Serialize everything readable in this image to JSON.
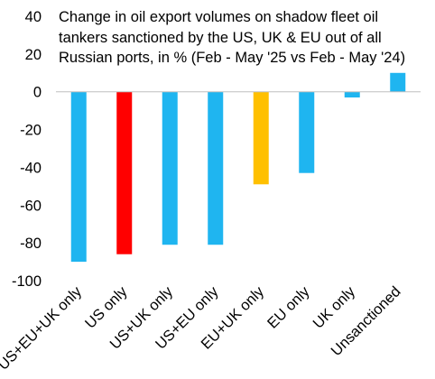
{
  "chart_data": {
    "type": "bar",
    "title_lines": [
      "Change in oil export volumes on shadow fleet oil",
      "tankers sanctioned by the US, UK & EU out of all",
      "Russian ports, in % (Feb - May '25 vs Feb - May '24)"
    ],
    "xlabel": "",
    "ylabel": "",
    "ylim": [
      -100,
      40
    ],
    "yticks": [
      40,
      20,
      0,
      -20,
      -40,
      -60,
      -80,
      -100
    ],
    "grid": false,
    "categories": [
      "US+EU+UK only",
      "US only",
      "US+UK only",
      "US+EU only",
      "EU+UK only",
      "EU only",
      "UK only",
      "Unsanctioned"
    ],
    "values": [
      -90,
      -86,
      -81,
      -81,
      -49,
      -43,
      -3,
      10
    ],
    "colors": [
      "#1fb5f0",
      "#ff0000",
      "#1fb5f0",
      "#1fb5f0",
      "#ffc000",
      "#1fb5f0",
      "#1fb5f0",
      "#1fb5f0"
    ]
  }
}
